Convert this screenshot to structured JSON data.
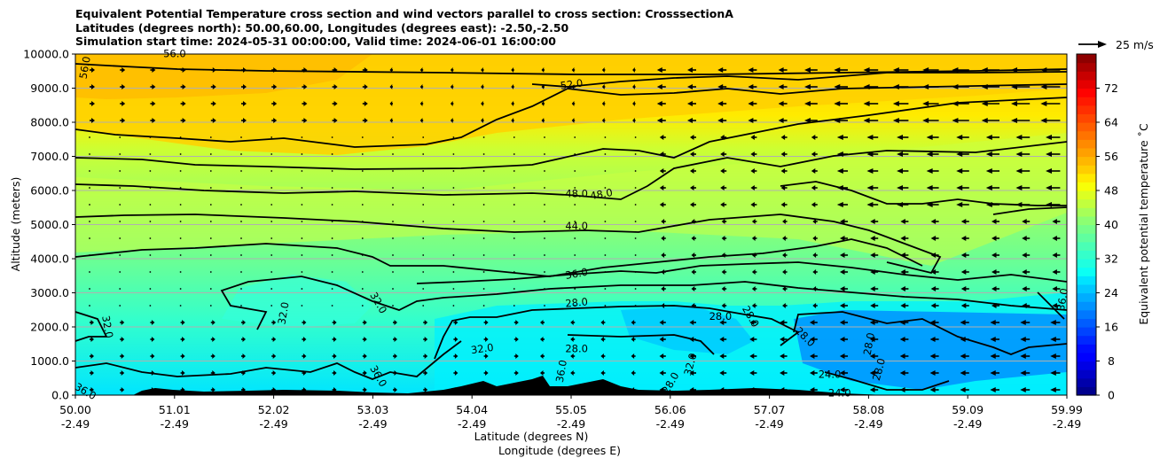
{
  "chart_data": {
    "type": "cross_section_contour",
    "title_lines": [
      "Equivalent Potential Temperature cross section and wind vectors parallel to cross section: CrosssectionA",
      "Latitudes (degrees north): 50.00,60.00, Longitudes (degrees east): -2.50,-2.50",
      "Simulation start time: 2024-05-31 00:00:00, Valid time: 2024-06-01 16:00:00"
    ],
    "ylabel": "Altitude (meters)",
    "xlabel_lat": "Latitude (degrees N)",
    "xlabel_lon": "Longitude (degrees E)",
    "yrange": [
      0,
      10000
    ],
    "y_ticks": [
      0,
      1000,
      2000,
      3000,
      4000,
      5000,
      6000,
      7000,
      8000,
      9000,
      10000
    ],
    "y_tick_labels": [
      "0.0",
      "1000.0",
      "2000.0",
      "3000.0",
      "4000.0",
      "5000.0",
      "6000.0",
      "7000.0",
      "8000.0",
      "9000.0",
      "10000.0"
    ],
    "x_ticks_lat": [
      "50.00",
      "51.01",
      "52.02",
      "53.03",
      "54.04",
      "55.05",
      "56.06",
      "57.07",
      "58.08",
      "59.09",
      "59.99"
    ],
    "x_ticks_lon": [
      "-2.49",
      "-2.49",
      "-2.49",
      "-2.49",
      "-2.49",
      "-2.49",
      "-2.49",
      "-2.49",
      "-2.49",
      "-2.49",
      "-2.49"
    ],
    "colorbar": {
      "label": "Equivalent potential temperature ˚C",
      "range": [
        0,
        80
      ],
      "ticks": [
        "0",
        "8",
        "16",
        "24",
        "32",
        "40",
        "48",
        "56",
        "64",
        "72"
      ]
    },
    "quiver_key": "25 m/s",
    "contour_labels": [
      {
        "text": "56.0",
        "x": 50.1,
        "y": 9600,
        "rot": -80
      },
      {
        "text": "56.0",
        "x": 51.0,
        "y": 10000,
        "rot": 0
      },
      {
        "text": "52.0",
        "x": 55.0,
        "y": 9100,
        "rot": -8
      },
      {
        "text": "48.0",
        "x": 55.05,
        "y": 5900,
        "rot": 0
      },
      {
        "text": "48.0",
        "x": 55.3,
        "y": 5880,
        "rot": -10
      },
      {
        "text": "44.0",
        "x": 55.05,
        "y": 4950,
        "rot": 0
      },
      {
        "text": "36.0",
        "x": 55.05,
        "y": 3550,
        "rot": -10
      },
      {
        "text": "28.0",
        "x": 55.05,
        "y": 2700,
        "rot": -5
      },
      {
        "text": "28.0",
        "x": 55.05,
        "y": 1350,
        "rot": 0
      },
      {
        "text": "32.0",
        "x": 54.1,
        "y": 1350,
        "rot": -8
      },
      {
        "text": "36.0",
        "x": 54.9,
        "y": 700,
        "rot": -80
      },
      {
        "text": "32.0",
        "x": 50.32,
        "y": 2000,
        "rot": 80
      },
      {
        "text": "32.0",
        "x": 52.1,
        "y": 2400,
        "rot": -80
      },
      {
        "text": "32.0",
        "x": 53.05,
        "y": 2700,
        "rot": 60
      },
      {
        "text": "36.0",
        "x": 53.05,
        "y": 550,
        "rot": 60
      },
      {
        "text": "36.0",
        "x": 50.1,
        "y": 100,
        "rot": 30
      },
      {
        "text": "28.0",
        "x": 56.5,
        "y": 2300,
        "rot": 0
      },
      {
        "text": "28.0",
        "x": 56.8,
        "y": 2300,
        "rot": 60
      },
      {
        "text": "28.0",
        "x": 57.35,
        "y": 1700,
        "rot": 45
      },
      {
        "text": "32.0",
        "x": 56.2,
        "y": 900,
        "rot": -75
      },
      {
        "text": "28.0",
        "x": 56.0,
        "y": 350,
        "rot": -60
      },
      {
        "text": "24.0",
        "x": 57.6,
        "y": 600,
        "rot": 0
      },
      {
        "text": "24.0",
        "x": 57.7,
        "y": 50,
        "rot": 0
      },
      {
        "text": "28.0",
        "x": 58.0,
        "y": 1500,
        "rot": -80
      },
      {
        "text": "28.0",
        "x": 58.1,
        "y": 750,
        "rot": -75
      },
      {
        "text": "36.0",
        "x": 59.95,
        "y": 2800,
        "rot": -80
      }
    ]
  }
}
